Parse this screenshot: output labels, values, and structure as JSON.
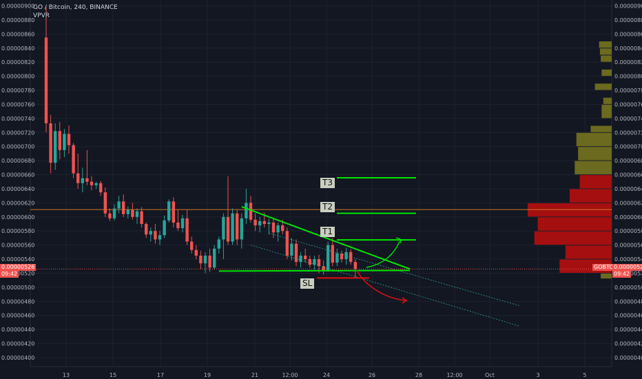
{
  "header": {
    "symbol_line": "GO / Bitcoin, 240, BINANCE",
    "indicator": "VPVR"
  },
  "price_axis": {
    "ticks": [
      "0.00000900",
      "0.00000880",
      "0.00000860",
      "0.00000840",
      "0.00000820",
      "0.00000800",
      "0.00000780",
      "0.00000760",
      "0.00000740",
      "0.00000720",
      "0.00000700",
      "0.00000680",
      "0.00000660",
      "0.00000640",
      "0.00000620",
      "0.00000600",
      "0.00000580",
      "0.00000560",
      "0.00000540",
      "0.00000520",
      "0.00000500",
      "0.00000480",
      "0.00000460",
      "0.00000440",
      "0.00000420",
      "0.00000400"
    ],
    "current_price": "0.00000526",
    "countdown": "09:42",
    "symbol_tag": "GOBTC"
  },
  "time_axis": {
    "ticks": [
      "13",
      "15",
      "17",
      "19",
      "21",
      "12:00",
      "24",
      "26",
      "28",
      "12:00",
      "Oct",
      "3",
      "5"
    ]
  },
  "annotations": {
    "targets": [
      {
        "label": "T3",
        "price": 6.556e-06
      },
      {
        "label": "T2",
        "price": 6.052e-06
      },
      {
        "label": "T1",
        "price": 5.674e-06
      }
    ],
    "stop_loss": {
      "label": "SL",
      "price": 5.133e-06
    },
    "horizontal_line_price": 6.105e-06
  },
  "colors": {
    "background": "#131722",
    "up": "#26a69a",
    "down": "#ef5350",
    "pattern": "#00e600",
    "stop": "#e01010",
    "volume_up": "#6b6a1e",
    "volume_down": "#a60f0f",
    "grid": "#1e2230"
  },
  "chart_data": {
    "type": "candlestick",
    "title": "GO / Bitcoin, 240, BINANCE",
    "y_range": [
      4e-06,
      9e-06
    ],
    "candles": [
      {
        "o": 8.55e-06,
        "h": 8.98e-06,
        "l": 7.2e-06,
        "c": 7.33e-06
      },
      {
        "o": 7.33e-06,
        "h": 7.45e-06,
        "l": 6.62e-06,
        "c": 6.77e-06
      },
      {
        "o": 6.77e-06,
        "h": 7.33e-06,
        "l": 6.67e-06,
        "c": 7.22e-06
      },
      {
        "o": 7.22e-06,
        "h": 7.35e-06,
        "l": 6.82e-06,
        "c": 6.95e-06
      },
      {
        "o": 6.95e-06,
        "h": 7.25e-06,
        "l": 6.85e-06,
        "c": 7.18e-06
      },
      {
        "o": 7.18e-06,
        "h": 7.3e-06,
        "l": 6.9e-06,
        "c": 7.02e-06
      },
      {
        "o": 7.02e-06,
        "h": 7.05e-06,
        "l": 6.55e-06,
        "c": 6.62e-06
      },
      {
        "o": 6.62e-06,
        "h": 6.9e-06,
        "l": 6.4e-06,
        "c": 6.48e-06
      },
      {
        "o": 6.48e-06,
        "h": 6.7e-06,
        "l": 6.35e-06,
        "c": 6.55e-06
      },
      {
        "o": 6.55e-06,
        "h": 6.95e-06,
        "l": 6.45e-06,
        "c": 6.5e-06
      },
      {
        "o": 6.5e-06,
        "h": 6.58e-06,
        "l": 6.38e-06,
        "c": 6.45e-06
      },
      {
        "o": 6.45e-06,
        "h": 6.5e-06,
        "l": 6.4e-06,
        "c": 6.48e-06
      },
      {
        "o": 6.48e-06,
        "h": 6.51e-06,
        "l": 6.3e-06,
        "c": 6.35e-06
      },
      {
        "o": 6.35e-06,
        "h": 6.42e-06,
        "l": 6e-06,
        "c": 6.05e-06
      },
      {
        "o": 6.05e-06,
        "h": 6.12e-06,
        "l": 5.94e-06,
        "c": 5.98e-06
      },
      {
        "o": 5.98e-06,
        "h": 6.18e-06,
        "l": 5.95e-06,
        "c": 6.12e-06
      },
      {
        "o": 6.12e-06,
        "h": 6.3e-06,
        "l": 6.05e-06,
        "c": 6.22e-06
      },
      {
        "o": 6.22e-06,
        "h": 6.32e-06,
        "l": 6e-06,
        "c": 6.04e-06
      },
      {
        "o": 6.04e-06,
        "h": 6.15e-06,
        "l": 5.98e-06,
        "c": 6.1e-06
      },
      {
        "o": 6.1e-06,
        "h": 6.2e-06,
        "l": 5.96e-06,
        "c": 6e-06
      },
      {
        "o": 6e-06,
        "h": 6.12e-06,
        "l": 5.9e-06,
        "c": 6.08e-06
      },
      {
        "o": 6.08e-06,
        "h": 6.14e-06,
        "l": 5.85e-06,
        "c": 5.9e-06
      },
      {
        "o": 5.9e-06,
        "h": 5.92e-06,
        "l": 5.7e-06,
        "c": 5.75e-06
      },
      {
        "o": 5.75e-06,
        "h": 5.85e-06,
        "l": 5.65e-06,
        "c": 5.8e-06
      },
      {
        "o": 5.8e-06,
        "h": 5.9e-06,
        "l": 5.62e-06,
        "c": 5.68e-06
      },
      {
        "o": 5.68e-06,
        "h": 5.8e-06,
        "l": 5.6e-06,
        "c": 5.74e-06
      },
      {
        "o": 5.74e-06,
        "h": 6.02e-06,
        "l": 5.7e-06,
        "c": 5.95e-06
      },
      {
        "o": 5.95e-06,
        "h": 6.25e-06,
        "l": 5.92e-06,
        "c": 6.22e-06
      },
      {
        "o": 6.22e-06,
        "h": 6.28e-06,
        "l": 5.85e-06,
        "c": 5.92e-06
      },
      {
        "o": 5.92e-06,
        "h": 6.1e-06,
        "l": 5.8e-06,
        "c": 5.84e-06
      },
      {
        "o": 5.84e-06,
        "h": 6.03e-06,
        "l": 5.78e-06,
        "c": 5.98e-06
      },
      {
        "o": 5.98e-06,
        "h": 6.1e-06,
        "l": 5.6e-06,
        "c": 5.65e-06
      },
      {
        "o": 5.65e-06,
        "h": 5.72e-06,
        "l": 5.48e-06,
        "c": 5.53e-06
      },
      {
        "o": 5.53e-06,
        "h": 5.6e-06,
        "l": 5.4e-06,
        "c": 5.45e-06
      },
      {
        "o": 5.45e-06,
        "h": 5.52e-06,
        "l": 5.26e-06,
        "c": 5.34e-06
      },
      {
        "o": 5.34e-06,
        "h": 5.5e-06,
        "l": 5.2e-06,
        "c": 5.45e-06
      },
      {
        "o": 5.45e-06,
        "h": 5.55e-06,
        "l": 5.22e-06,
        "c": 5.28e-06
      },
      {
        "o": 5.28e-06,
        "h": 5.6e-06,
        "l": 5.25e-06,
        "c": 5.55e-06
      },
      {
        "o": 5.55e-06,
        "h": 5.72e-06,
        "l": 5.48e-06,
        "c": 5.68e-06
      },
      {
        "o": 5.68e-06,
        "h": 6.05e-06,
        "l": 5.4e-06,
        "c": 6e-06
      },
      {
        "o": 6e-06,
        "h": 6.58e-06,
        "l": 5.6e-06,
        "c": 5.65e-06
      },
      {
        "o": 5.65e-06,
        "h": 6.12e-06,
        "l": 5.6e-06,
        "c": 6.05e-06
      },
      {
        "o": 6.05e-06,
        "h": 6.1e-06,
        "l": 5.6e-06,
        "c": 5.68e-06
      },
      {
        "o": 5.68e-06,
        "h": 6.05e-06,
        "l": 5.55e-06,
        "c": 5.98e-06
      },
      {
        "o": 5.98e-06,
        "h": 6.4e-06,
        "l": 5.9e-06,
        "c": 6.2e-06
      },
      {
        "o": 6.2e-06,
        "h": 6.3e-06,
        "l": 5.92e-06,
        "c": 5.96e-06
      },
      {
        "o": 5.96e-06,
        "h": 6.05e-06,
        "l": 5.8e-06,
        "c": 5.88e-06
      },
      {
        "o": 5.88e-06,
        "h": 6e-06,
        "l": 5.78e-06,
        "c": 5.94e-06
      },
      {
        "o": 5.94e-06,
        "h": 6.06e-06,
        "l": 5.85e-06,
        "c": 5.9e-06
      },
      {
        "o": 5.9e-06,
        "h": 5.98e-06,
        "l": 5.75e-06,
        "c": 5.92e-06
      },
      {
        "o": 5.92e-06,
        "h": 5.98e-06,
        "l": 5.7e-06,
        "c": 5.78e-06
      },
      {
        "o": 5.78e-06,
        "h": 5.92e-06,
        "l": 5.65e-06,
        "c": 5.88e-06
      },
      {
        "o": 5.88e-06,
        "h": 5.96e-06,
        "l": 5.75e-06,
        "c": 5.8e-06
      },
      {
        "o": 5.8e-06,
        "h": 5.85e-06,
        "l": 5.4e-06,
        "c": 5.45e-06
      },
      {
        "o": 5.45e-06,
        "h": 5.7e-06,
        "l": 5.38e-06,
        "c": 5.62e-06
      },
      {
        "o": 5.62e-06,
        "h": 5.68e-06,
        "l": 5.3e-06,
        "c": 5.36e-06
      },
      {
        "o": 5.36e-06,
        "h": 5.5e-06,
        "l": 5.28e-06,
        "c": 5.45e-06
      },
      {
        "o": 5.45e-06,
        "h": 5.55e-06,
        "l": 5.35e-06,
        "c": 5.4e-06
      },
      {
        "o": 5.4e-06,
        "h": 5.45e-06,
        "l": 5.28e-06,
        "c": 5.32e-06
      },
      {
        "o": 5.32e-06,
        "h": 5.45e-06,
        "l": 5.25e-06,
        "c": 5.4e-06
      },
      {
        "o": 5.4e-06,
        "h": 5.46e-06,
        "l": 5.2e-06,
        "c": 5.3e-06
      },
      {
        "o": 5.3e-06,
        "h": 5.38e-06,
        "l": 5.18e-06,
        "c": 5.24e-06
      },
      {
        "o": 5.24e-06,
        "h": 5.65e-06,
        "l": 5.22e-06,
        "c": 5.6e-06
      },
      {
        "o": 5.6e-06,
        "h": 5.7e-06,
        "l": 5.3e-06,
        "c": 5.35e-06
      },
      {
        "o": 5.35e-06,
        "h": 5.55e-06,
        "l": 5.3e-06,
        "c": 5.48e-06
      },
      {
        "o": 5.48e-06,
        "h": 5.52e-06,
        "l": 5.35e-06,
        "c": 5.4e-06
      },
      {
        "o": 5.4e-06,
        "h": 5.56e-06,
        "l": 5.32e-06,
        "c": 5.5e-06
      },
      {
        "o": 5.5e-06,
        "h": 5.54e-06,
        "l": 5.32e-06,
        "c": 5.36e-06
      },
      {
        "o": 5.36e-06,
        "h": 5.4e-06,
        "l": 5.14e-06,
        "c": 5.26e-06
      }
    ],
    "volume_profile": [
      {
        "price_from": 8.4e-06,
        "price_to": 8.5e-06,
        "volume": 0.15,
        "side": "up"
      },
      {
        "price_from": 8.3e-06,
        "price_to": 8.4e-06,
        "volume": 0.14,
        "side": "up"
      },
      {
        "price_from": 8.2e-06,
        "price_to": 8.3e-06,
        "volume": 0.13,
        "side": "up"
      },
      {
        "price_from": 8e-06,
        "price_to": 8.1e-06,
        "volume": 0.12,
        "side": "up"
      },
      {
        "price_from": 7.8e-06,
        "price_to": 7.9e-06,
        "volume": 0.2,
        "side": "up"
      },
      {
        "price_from": 7.6e-06,
        "price_to": 7.7e-06,
        "volume": 0.1,
        "side": "up"
      },
      {
        "price_from": 7.4e-06,
        "price_to": 7.6e-06,
        "volume": 0.12,
        "side": "up"
      },
      {
        "price_from": 7.2e-06,
        "price_to": 7.3e-06,
        "volume": 0.25,
        "side": "up"
      },
      {
        "price_from": 7e-06,
        "price_to": 7.2e-06,
        "volume": 0.42,
        "side": "up"
      },
      {
        "price_from": 6.8e-06,
        "price_to": 7e-06,
        "volume": 0.4,
        "side": "up"
      },
      {
        "price_from": 6.6e-06,
        "price_to": 6.8e-06,
        "volume": 0.44,
        "side": "up"
      },
      {
        "price_from": 6.4e-06,
        "price_to": 6.6e-06,
        "volume": 0.38,
        "side": "down"
      },
      {
        "price_from": 6.2e-06,
        "price_to": 6.4e-06,
        "volume": 0.5,
        "side": "down"
      },
      {
        "price_from": 6e-06,
        "price_to": 6.2e-06,
        "volume": 1.0,
        "side": "down"
      },
      {
        "price_from": 5.8e-06,
        "price_to": 6e-06,
        "volume": 0.88,
        "side": "down"
      },
      {
        "price_from": 5.6e-06,
        "price_to": 5.8e-06,
        "volume": 0.92,
        "side": "down"
      },
      {
        "price_from": 5.4e-06,
        "price_to": 5.6e-06,
        "volume": 0.55,
        "side": "down"
      },
      {
        "price_from": 5.2e-06,
        "price_to": 5.4e-06,
        "volume": 0.62,
        "side": "down"
      },
      {
        "price_from": 5.12e-06,
        "price_to": 5.2e-06,
        "volume": 0.13,
        "side": "up"
      }
    ],
    "trendlines": {
      "descending_top": {
        "from": {
          "candle": 43,
          "price": 6.145e-06
        },
        "to": {
          "candle": 80,
          "price": 5.26e-06
        }
      },
      "flat_support": {
        "from": {
          "candle": 38,
          "price": 5.23e-06
        },
        "to": {
          "candle": 80,
          "price": 5.24e-06
        }
      },
      "channel_upper": {
        "from": {
          "candle": 49,
          "price": 5.77e-06
        },
        "to": {
          "candle": 104,
          "price": 4.74e-06
        }
      },
      "channel_lower": {
        "from": {
          "candle": 45,
          "price": 5.6e-06
        },
        "to": {
          "candle": 104,
          "price": 4.45e-06
        }
      }
    }
  }
}
